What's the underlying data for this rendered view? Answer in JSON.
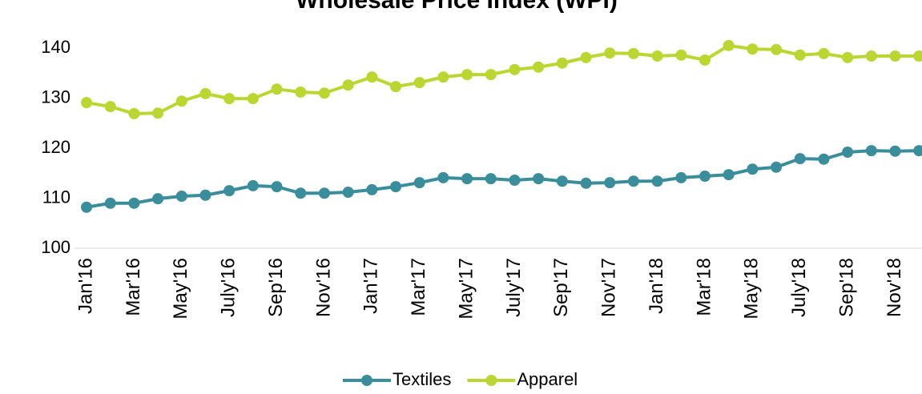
{
  "chart_data": {
    "type": "line",
    "title": "Wholesale Price Index (WPI)",
    "categories": [
      "Jan'16",
      null,
      "Mar'16",
      null,
      "May'16",
      null,
      "July'16",
      null,
      "Sep'16",
      null,
      "Nov'16",
      null,
      "Jan'17",
      null,
      "Mar'17",
      null,
      "May'17",
      null,
      "July'17",
      null,
      "Sep'17",
      null,
      "Nov'17",
      null,
      "Jan'18",
      null,
      "Mar'18",
      null,
      "May'18",
      null,
      "July'18",
      null,
      "Sep'18",
      null,
      "Nov'18",
      null
    ],
    "series": [
      {
        "name": "Textiles",
        "color": "#3a8d9b",
        "values": [
          108.2,
          109.0,
          109.0,
          109.9,
          110.4,
          110.6,
          111.5,
          112.5,
          112.3,
          111.0,
          111.0,
          111.2,
          111.7,
          112.3,
          113.1,
          114.1,
          113.9,
          113.9,
          113.6,
          113.9,
          113.4,
          113.0,
          113.1,
          113.4,
          113.4,
          114.1,
          114.4,
          114.7,
          115.8,
          116.2,
          117.9,
          117.8,
          119.2,
          119.5,
          119.4,
          119.5
        ]
      },
      {
        "name": "Apparel",
        "color": "#bcd631",
        "values": [
          129.1,
          128.3,
          126.9,
          127.0,
          129.4,
          130.9,
          129.9,
          129.9,
          131.8,
          131.2,
          131.0,
          132.6,
          134.2,
          132.3,
          133.1,
          134.2,
          134.7,
          134.7,
          135.7,
          136.2,
          137.0,
          138.1,
          139.0,
          138.9,
          138.4,
          138.6,
          137.6,
          140.5,
          139.8,
          139.7,
          138.6,
          138.9,
          138.1,
          138.4,
          138.4,
          138.4
        ]
      }
    ],
    "ylim": [
      100,
      140
    ],
    "yticks": [
      100,
      110,
      120,
      130,
      140
    ],
    "grid": false,
    "legend": "bottom"
  }
}
